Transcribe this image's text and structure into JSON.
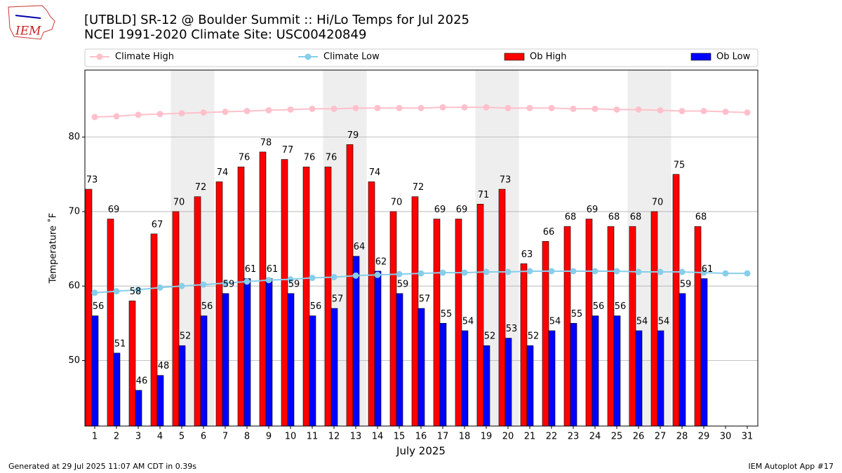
{
  "chart_data": {
    "type": "bar",
    "title": "[UTBLD] SR-12 @ Boulder Summit  :: Hi/Lo Temps for Jul 2025",
    "subtitle": "NCEI 1991-2020 Climate Site: USC00420849",
    "x_label": "July 2025",
    "y_label": "Temperature ˚F",
    "categories": [
      "1",
      "2",
      "3",
      "4",
      "5",
      "6",
      "7",
      "8",
      "9",
      "10",
      "11",
      "12",
      "13",
      "14",
      "15",
      "16",
      "17",
      "18",
      "19",
      "20",
      "21",
      "22",
      "23",
      "24",
      "25",
      "26",
      "27",
      "28",
      "29",
      "30",
      "31"
    ],
    "shaded_days": [
      5,
      6,
      12,
      13,
      19,
      20,
      26,
      27
    ],
    "ylim": [
      41.2,
      89
    ],
    "yticks": [
      50,
      60,
      70,
      80
    ],
    "grid": true,
    "series": [
      {
        "name": "Climate High",
        "type": "line",
        "color": "#ffc0cb",
        "values": [
          82.7,
          82.8,
          83.0,
          83.1,
          83.2,
          83.3,
          83.4,
          83.5,
          83.6,
          83.7,
          83.8,
          83.8,
          83.9,
          83.9,
          83.9,
          83.9,
          84.0,
          84.0,
          84.0,
          83.9,
          83.9,
          83.9,
          83.8,
          83.8,
          83.7,
          83.7,
          83.6,
          83.5,
          83.5,
          83.4,
          83.3
        ]
      },
      {
        "name": "Climate Low",
        "type": "line",
        "color": "#87ceeb",
        "values": [
          59.1,
          59.3,
          59.5,
          59.8,
          60.0,
          60.2,
          60.4,
          60.6,
          60.8,
          60.9,
          61.1,
          61.2,
          61.4,
          61.5,
          61.6,
          61.7,
          61.8,
          61.8,
          61.9,
          61.9,
          62.0,
          62.0,
          62.0,
          62.0,
          62.0,
          61.9,
          61.9,
          61.9,
          61.8,
          61.7,
          61.7
        ]
      },
      {
        "name": "Ob High",
        "type": "bar",
        "color": "#ff0000",
        "values": [
          73,
          69,
          58,
          67,
          70,
          72,
          74,
          76,
          78,
          77,
          76,
          76,
          79,
          74,
          70,
          72,
          69,
          69,
          71,
          73,
          63,
          66,
          68,
          69,
          68,
          68,
          70,
          75,
          68,
          null,
          null
        ]
      },
      {
        "name": "Ob Low",
        "type": "bar",
        "color": "#0000ff",
        "values": [
          56,
          51,
          46,
          48,
          52,
          56,
          59,
          61,
          61,
          59,
          56,
          57,
          64,
          62,
          59,
          57,
          55,
          54,
          52,
          53,
          52,
          54,
          55,
          56,
          56,
          54,
          54,
          59,
          61,
          null,
          null
        ]
      }
    ]
  },
  "logo": "IEM",
  "footer": {
    "left": "Generated at 29 Jul 2025 11:07 AM CDT in 0.39s",
    "right": "IEM Autoplot App #17"
  }
}
